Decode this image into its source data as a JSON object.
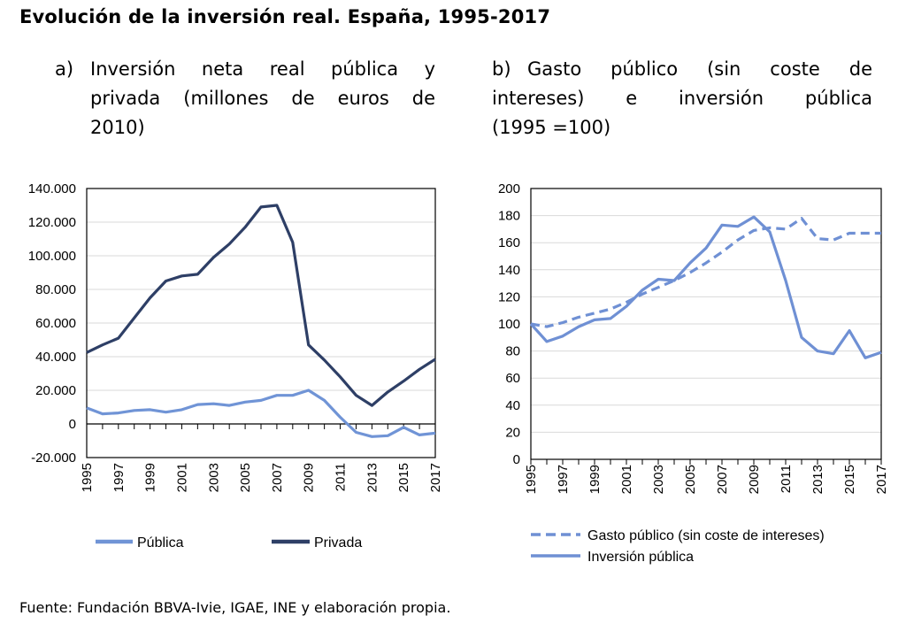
{
  "title": "Evolución de la inversión real. España, 1995-2017",
  "source": "Fuente: Fundación BBVA-Ivie, IGAE, INE y elaboración propia.",
  "chart_data": [
    {
      "id": "a",
      "type": "line",
      "label": "a)",
      "title_lines": [
        "Inversión neta real pública y",
        "privada (millones de euros de",
        "2010)"
      ],
      "x": [
        1995,
        1996,
        1997,
        1998,
        1999,
        2000,
        2001,
        2002,
        2003,
        2004,
        2005,
        2006,
        2007,
        2008,
        2009,
        2010,
        2011,
        2012,
        2013,
        2014,
        2015,
        2016,
        2017
      ],
      "x_tick_labels": [
        "1995",
        "1997",
        "1999",
        "2001",
        "2003",
        "2005",
        "2007",
        "2009",
        "2011",
        "2013",
        "2015",
        "2017"
      ],
      "ylim": [
        -20000,
        140000
      ],
      "y_ticks": [
        -20000,
        0,
        20000,
        40000,
        60000,
        80000,
        100000,
        120000,
        140000
      ],
      "y_tick_labels": [
        "-20.000",
        "0",
        "20.000",
        "40.000",
        "60.000",
        "80.000",
        "100.000",
        "120.000",
        "140.000"
      ],
      "grid": true,
      "legend_position": "bottom",
      "series": [
        {
          "name": "Pública",
          "color": "#7094d6",
          "dashed": false,
          "values": [
            9500,
            6000,
            6500,
            8000,
            8500,
            7000,
            8500,
            11500,
            12000,
            11000,
            13000,
            14000,
            17000,
            17000,
            20000,
            14000,
            4000,
            -5000,
            -7500,
            -7000,
            -2000,
            -6500,
            -5500
          ]
        },
        {
          "name": "Privada",
          "color": "#2e3f66",
          "dashed": false,
          "values": [
            42500,
            47000,
            51000,
            63000,
            75000,
            85000,
            88000,
            89000,
            99000,
            107000,
            117000,
            129000,
            130000,
            108000,
            47000,
            38000,
            28000,
            17000,
            11000,
            19000,
            25500,
            32500,
            38500
          ]
        }
      ]
    },
    {
      "id": "b",
      "type": "line",
      "label": "b)",
      "title_lines": [
        "Gasto público (sin coste de",
        "intereses) e inversión pública",
        "(1995 =100)"
      ],
      "x": [
        1995,
        1996,
        1997,
        1998,
        1999,
        2000,
        2001,
        2002,
        2003,
        2004,
        2005,
        2006,
        2007,
        2008,
        2009,
        2010,
        2011,
        2012,
        2013,
        2014,
        2015,
        2016,
        2017
      ],
      "x_tick_labels": [
        "1995",
        "1997",
        "1999",
        "2001",
        "2003",
        "2005",
        "2007",
        "2009",
        "2011",
        "2013",
        "2015",
        "2017"
      ],
      "ylim": [
        0,
        200
      ],
      "y_ticks": [
        0,
        20,
        40,
        60,
        80,
        100,
        120,
        140,
        160,
        180,
        200
      ],
      "y_tick_labels": [
        "0",
        "20",
        "40",
        "60",
        "80",
        "100",
        "120",
        "140",
        "160",
        "180",
        "200"
      ],
      "grid": true,
      "legend_position": "bottom",
      "series": [
        {
          "name": "Gasto público (sin coste de intereses)",
          "color": "#6f90d4",
          "dashed": true,
          "values": [
            100,
            98,
            101,
            105,
            108,
            111,
            116,
            122,
            127,
            132,
            138,
            145,
            153,
            162,
            169,
            171,
            170,
            178,
            163,
            162,
            167,
            167,
            167
          ]
        },
        {
          "name": "Inversión pública",
          "color": "#6f90d4",
          "dashed": false,
          "values": [
            100,
            87,
            91,
            98,
            103,
            104,
            113,
            125,
            133,
            132,
            145,
            156,
            173,
            172,
            179,
            168,
            132,
            90,
            80,
            78,
            95,
            75,
            79
          ]
        }
      ]
    }
  ]
}
